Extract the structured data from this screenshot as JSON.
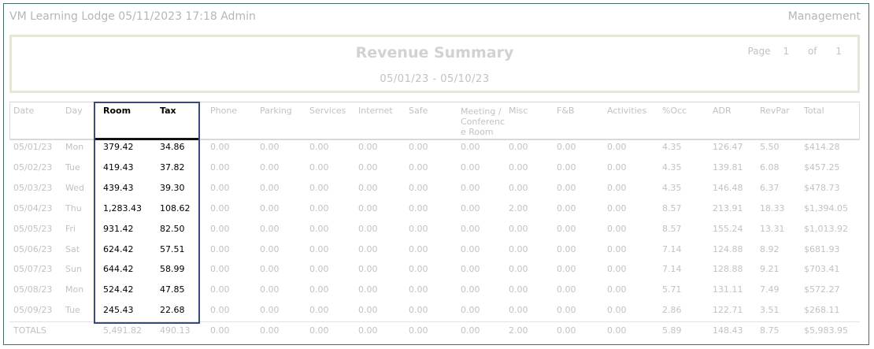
{
  "topbar": {
    "left_text": "VM Learning Lodge 05/11/2023 17:18  Admin",
    "right_text": "Management"
  },
  "report": {
    "title": "Revenue Summary",
    "date_range": "05/01/23 - 05/10/23",
    "page_label": "Page",
    "page_number": "1",
    "of_label": "of",
    "page_count": "1"
  },
  "table": {
    "columns": [
      "Date",
      "Day",
      "Room",
      "Tax",
      "Phone",
      "Parking",
      "Services",
      "Internet",
      "Safe",
      "Meeting / Conference Room",
      "Misc",
      "F&B",
      "Activities",
      "%Occ",
      "ADR",
      "RevPar",
      "Total"
    ],
    "meeting_header_lines": [
      "Meeting /",
      "Conferenc",
      "e Room"
    ],
    "rows": [
      [
        "05/01/23",
        "Mon",
        "379.42",
        "34.86",
        "0.00",
        "0.00",
        "0.00",
        "0.00",
        "0.00",
        "0.00",
        "0.00",
        "0.00",
        "0.00",
        "4.35",
        "126.47",
        "5.50",
        "$414.28"
      ],
      [
        "05/02/23",
        "Tue",
        "419.43",
        "37.82",
        "0.00",
        "0.00",
        "0.00",
        "0.00",
        "0.00",
        "0.00",
        "0.00",
        "0.00",
        "0.00",
        "4.35",
        "139.81",
        "6.08",
        "$457.25"
      ],
      [
        "05/03/23",
        "Wed",
        "439.43",
        "39.30",
        "0.00",
        "0.00",
        "0.00",
        "0.00",
        "0.00",
        "0.00",
        "0.00",
        "0.00",
        "0.00",
        "4.35",
        "146.48",
        "6.37",
        "$478.73"
      ],
      [
        "05/04/23",
        "Thu",
        "1,283.43",
        "108.62",
        "0.00",
        "0.00",
        "0.00",
        "0.00",
        "0.00",
        "0.00",
        "2.00",
        "0.00",
        "0.00",
        "8.57",
        "213.91",
        "18.33",
        "$1,394.05"
      ],
      [
        "05/05/23",
        "Fri",
        "931.42",
        "82.50",
        "0.00",
        "0.00",
        "0.00",
        "0.00",
        "0.00",
        "0.00",
        "0.00",
        "0.00",
        "0.00",
        "8.57",
        "155.24",
        "13.31",
        "$1,013.92"
      ],
      [
        "05/06/23",
        "Sat",
        "624.42",
        "57.51",
        "0.00",
        "0.00",
        "0.00",
        "0.00",
        "0.00",
        "0.00",
        "0.00",
        "0.00",
        "0.00",
        "7.14",
        "124.88",
        "8.92",
        "$681.93"
      ],
      [
        "05/07/23",
        "Sun",
        "644.42",
        "58.99",
        "0.00",
        "0.00",
        "0.00",
        "0.00",
        "0.00",
        "0.00",
        "0.00",
        "0.00",
        "0.00",
        "7.14",
        "128.88",
        "9.21",
        "$703.41"
      ],
      [
        "05/08/23",
        "Mon",
        "524.42",
        "47.85",
        "0.00",
        "0.00",
        "0.00",
        "0.00",
        "0.00",
        "0.00",
        "0.00",
        "0.00",
        "0.00",
        "5.71",
        "131.11",
        "7.49",
        "$572.27"
      ],
      [
        "05/09/23",
        "Tue",
        "245.43",
        "22.68",
        "0.00",
        "0.00",
        "0.00",
        "0.00",
        "0.00",
        "0.00",
        "0.00",
        "0.00",
        "0.00",
        "2.86",
        "122.71",
        "3.51",
        "$268.11"
      ]
    ],
    "totals": [
      "TOTALS",
      "",
      "5,491.82",
      "490.13",
      "0.00",
      "0.00",
      "0.00",
      "0.00",
      "0.00",
      "0.00",
      "2.00",
      "0.00",
      "0.00",
      "5.89",
      "148.43",
      "8.75",
      "$5,983.95"
    ]
  },
  "colors": {
    "highlight_border": "#3a4a78",
    "faded_text": "#c2c2c2",
    "header_box_border": "#e6e6d6"
  }
}
